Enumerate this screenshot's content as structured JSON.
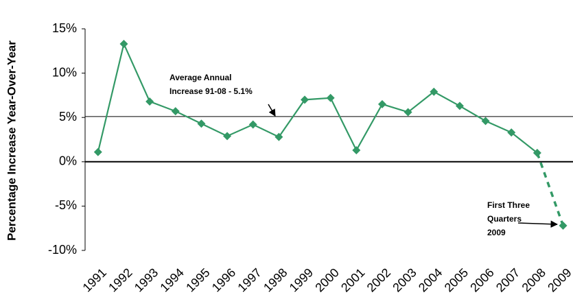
{
  "chart_data": {
    "type": "line",
    "y_label": "Percentage Increase Year-Over-Year",
    "categories": [
      "1991",
      "1992",
      "1993",
      "1994",
      "1995",
      "1996",
      "1997",
      "1998",
      "1999",
      "2000",
      "2001",
      "2002",
      "2003",
      "2004",
      "2005",
      "2006",
      "2007",
      "2008",
      "2009"
    ],
    "series": [
      {
        "color": "#339966",
        "values": [
          1.1,
          13.3,
          6.8,
          5.7,
          4.3,
          2.9,
          4.2,
          2.8,
          7.0,
          7.2,
          1.3,
          6.5,
          5.6,
          7.9,
          6.3,
          4.6,
          3.3,
          1.0,
          -7.2
        ]
      }
    ],
    "dashed_last_segment": true,
    "ylim": [
      -10,
      15
    ],
    "yticks": [
      {
        "value": -10,
        "label": "-10%"
      },
      {
        "value": -5,
        "label": "-5%"
      },
      {
        "value": 0,
        "label": "0%"
      },
      {
        "value": 5,
        "label": "5%"
      },
      {
        "value": 10,
        "label": "10%"
      },
      {
        "value": 15,
        "label": "15%"
      }
    ],
    "average_line": 5.1,
    "annotations": [
      {
        "lines": [
          "Average Annual",
          "Increase 91-08 - 5.1%"
        ]
      },
      {
        "lines": [
          "First Three",
          "Quarters",
          "2009"
        ]
      }
    ]
  }
}
